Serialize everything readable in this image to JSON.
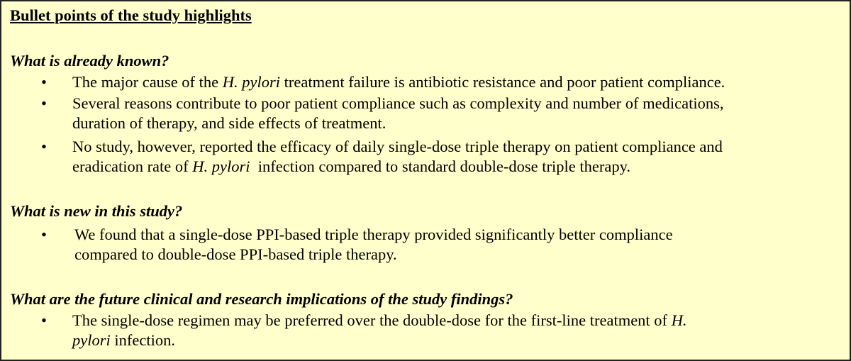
{
  "title": "Bullet points of the study highlights",
  "sections": [
    {
      "heading": "What is already known?",
      "bullets": [
        {
          "l1a": "The major cause of the ",
          "l1i": "H. pylori",
          "l1b": " treatment failure is antibiotic resistance and poor patient compliance."
        },
        {
          "l1": "Several reasons contribute to poor patient compliance such as complexity and number of medications,",
          "l2": "duration of therapy, and side effects of treatment."
        },
        {
          "l1": "No study, however, reported the efficacy of daily single-dose triple therapy on patient compliance and",
          "l2a": "eradication rate of ",
          "l2i": "H. pylori",
          "l2b": "  infection compared to standard double-dose triple therapy."
        }
      ]
    },
    {
      "heading": "What is new in this study?",
      "bullets": [
        {
          "l1": "We found that a single-dose PPI-based triple therapy provided significantly better compliance",
          "l2": "compared to double-dose PPI-based triple therapy."
        }
      ]
    },
    {
      "heading": "What are the future clinical and research implications of the study findings?",
      "bullets": [
        {
          "l1a": "The single-dose regimen may be preferred over the double-dose for the first-line treatment of ",
          "l1i": "H.",
          "l2i": "pylori",
          "l2b": " infection."
        }
      ]
    }
  ],
  "bullet_glyph": "•",
  "colors": {
    "background": "#FFFFCC",
    "border": "#222222"
  }
}
